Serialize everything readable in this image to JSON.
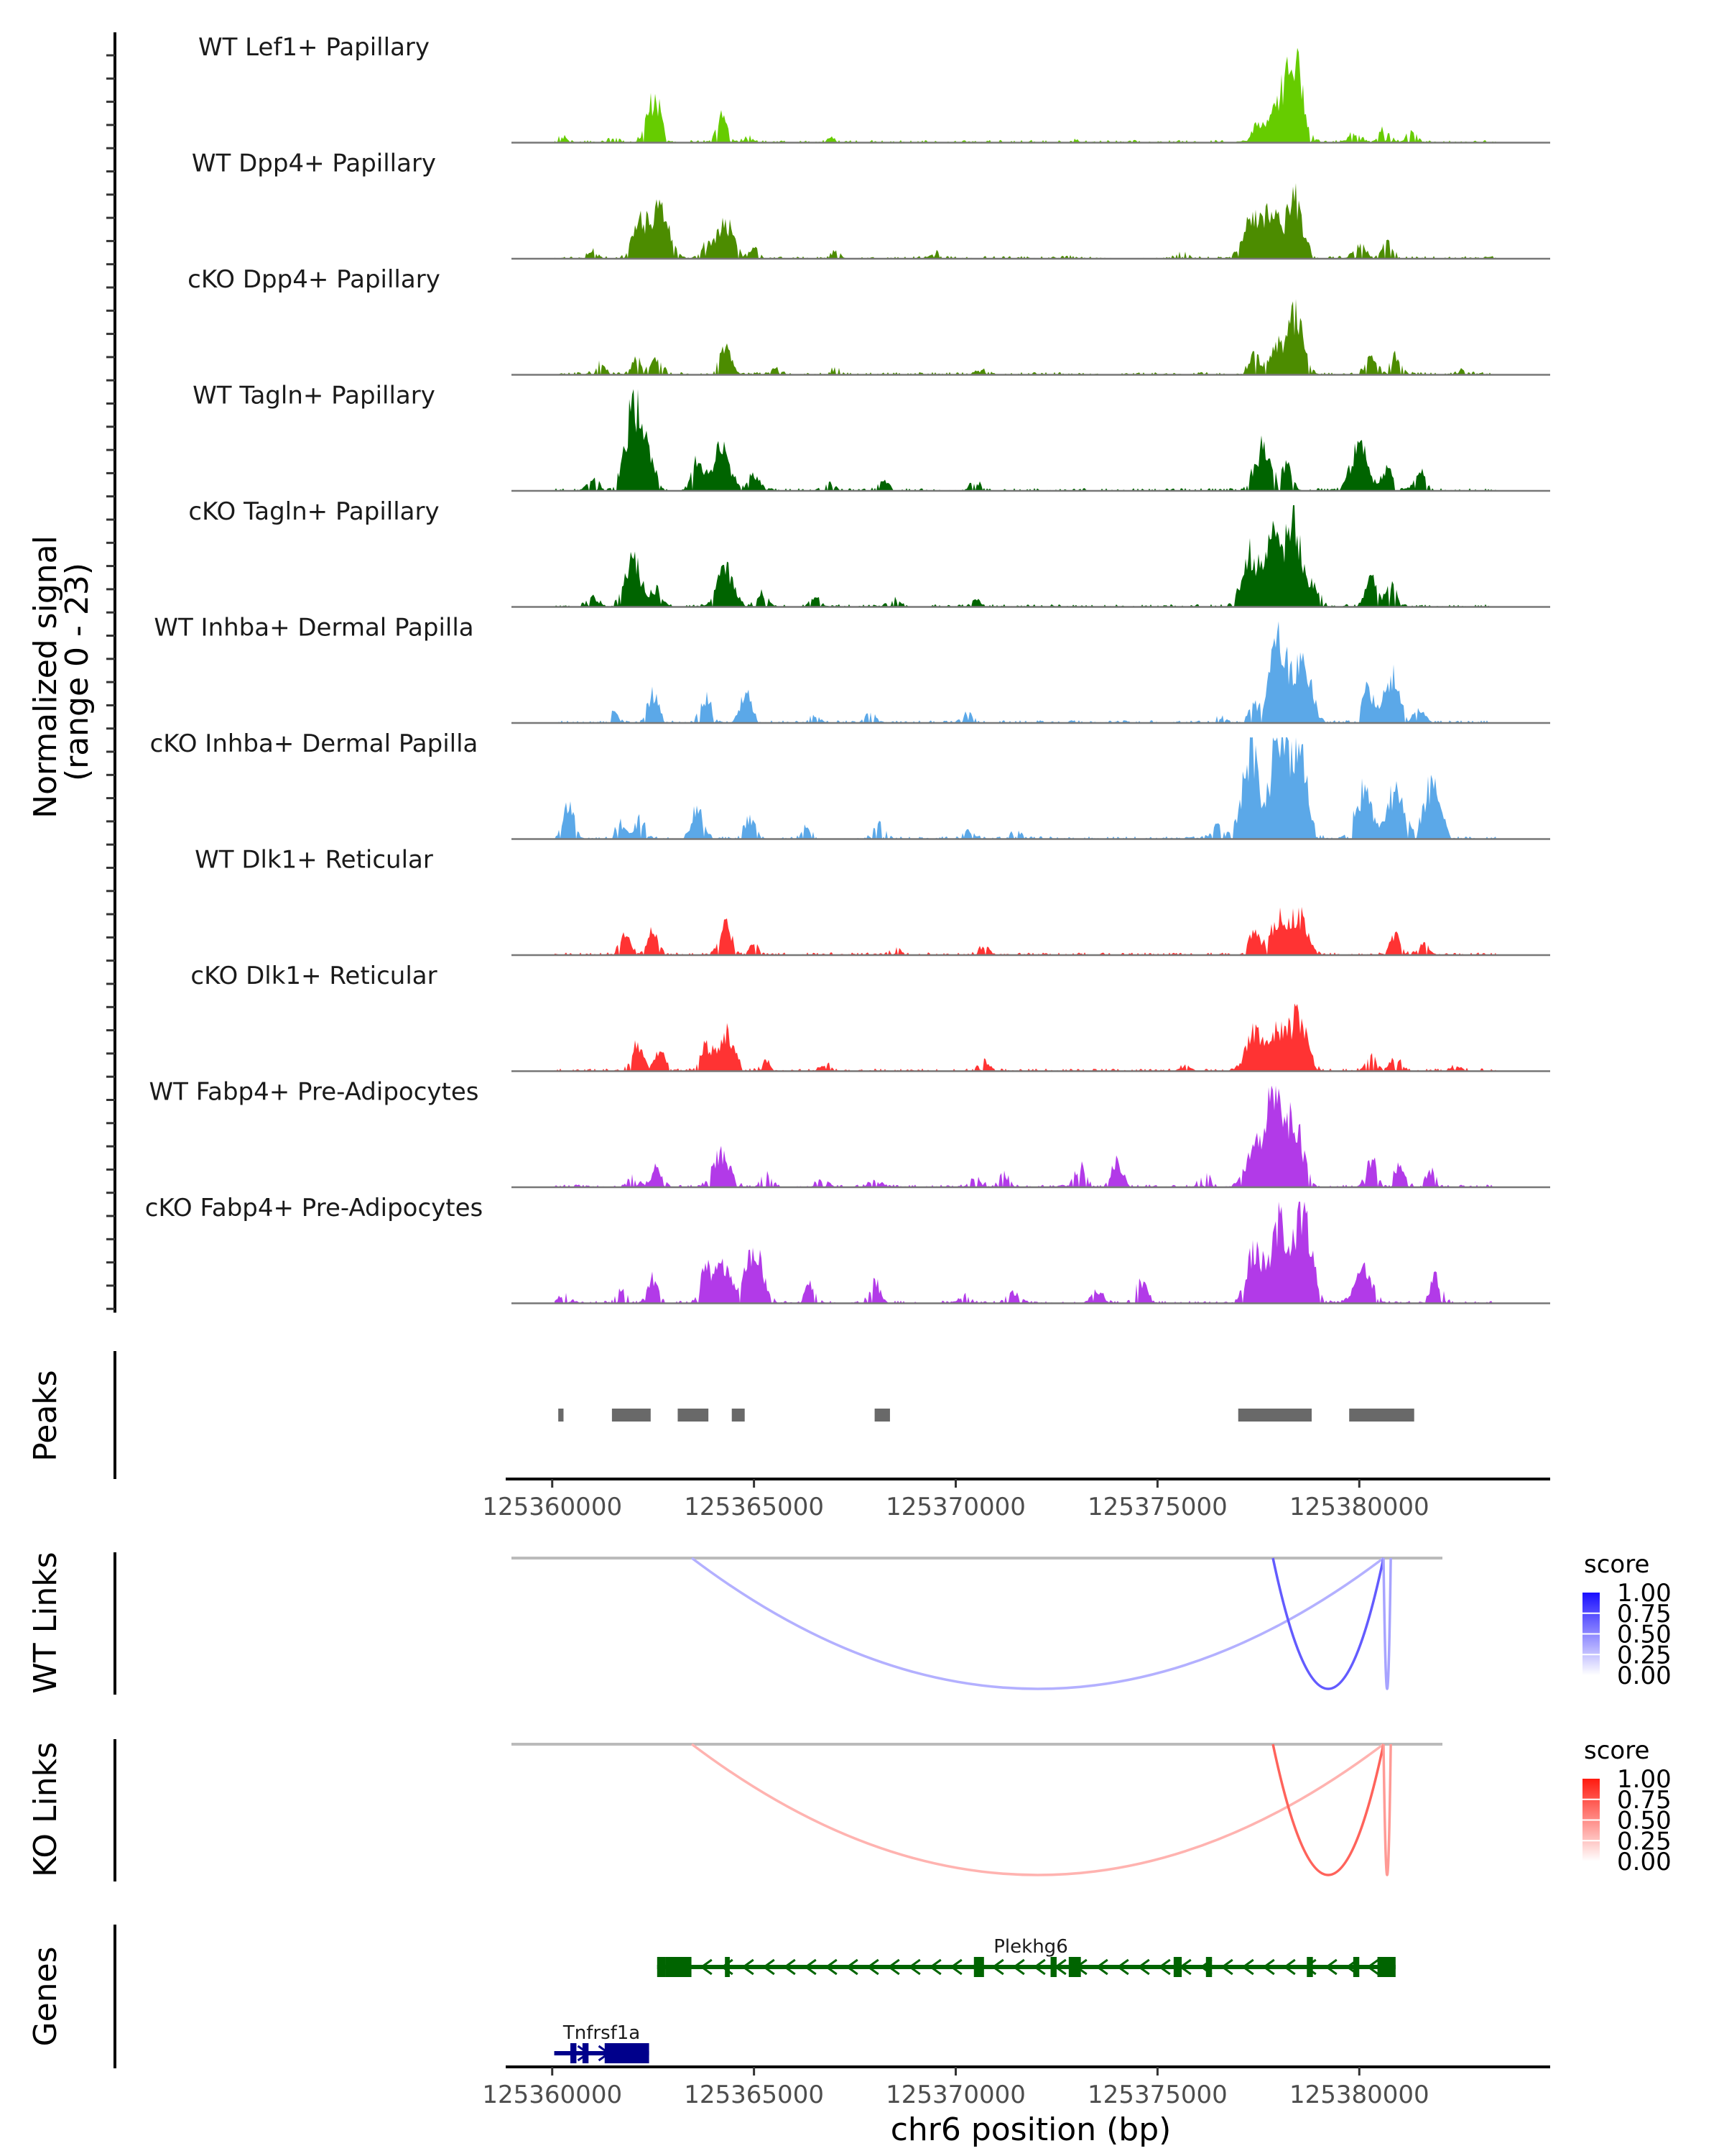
{
  "chart_data": {
    "type": "area",
    "title": "",
    "region": {
      "chrom": "chr6",
      "start": 125358990,
      "end": 125384730
    },
    "coverage_ylabel": [
      "Normalized signal",
      "(range 0 - 23)"
    ],
    "coverage_ylim": [
      0,
      23
    ],
    "xlabel": "chr6 position (bp)",
    "x_ticks": [
      125360000,
      125365000,
      125370000,
      125375000,
      125380000
    ],
    "x_tick_labels": [
      "125360000",
      "125365000",
      "125370000",
      "125375000",
      "125380000"
    ],
    "coverage_tracks": [
      {
        "name": "WT Lef1+ Papillary",
        "color": "#66cc00",
        "peaks": [
          [
            125360250,
            1.2
          ],
          [
            125361500,
            1.0
          ],
          [
            125362400,
            5.0
          ],
          [
            125362600,
            8.0
          ],
          [
            125364200,
            6.5
          ],
          [
            125364900,
            1.2
          ],
          [
            125366900,
            1.0
          ],
          [
            125373000,
            0.5
          ],
          [
            125377500,
            4.5
          ],
          [
            125378000,
            8.5
          ],
          [
            125378400,
            19.0
          ],
          [
            125379900,
            2.5
          ],
          [
            125380600,
            2.8
          ],
          [
            125381300,
            2.5
          ]
        ]
      },
      {
        "name": "WT Dpp4+ Papillary",
        "color": "#4c8c00",
        "peaks": [
          [
            125361000,
            2.0
          ],
          [
            125362200,
            9.0
          ],
          [
            125362700,
            12.0
          ],
          [
            125363800,
            3.0
          ],
          [
            125364300,
            8.5
          ],
          [
            125365000,
            2.0
          ],
          [
            125367000,
            1.5
          ],
          [
            125369500,
            1.5
          ],
          [
            125372800,
            1.0
          ],
          [
            125375600,
            1.5
          ],
          [
            125377300,
            9.0
          ],
          [
            125377800,
            11.0
          ],
          [
            125378400,
            14.0
          ],
          [
            125380000,
            3.5
          ],
          [
            125380700,
            4.0
          ]
        ]
      },
      {
        "name": "cKO Dpp4+ Papillary",
        "color": "#4c8c00",
        "peaks": [
          [
            125361200,
            2.5
          ],
          [
            125362100,
            4.0
          ],
          [
            125362600,
            4.0
          ],
          [
            125364300,
            7.5
          ],
          [
            125365500,
            1.5
          ],
          [
            125367000,
            1.5
          ],
          [
            125370700,
            1.5
          ],
          [
            125377400,
            5.0
          ],
          [
            125377900,
            7.0
          ],
          [
            125378400,
            14.0
          ],
          [
            125380300,
            4.5
          ],
          [
            125380900,
            4.5
          ],
          [
            125382500,
            1.0
          ]
        ]
      },
      {
        "name": "WT Tagln+ Papillary",
        "color": "#006400",
        "peaks": [
          [
            125361000,
            3.0
          ],
          [
            125362000,
            17.0
          ],
          [
            125362300,
            9.0
          ],
          [
            125363600,
            7.0
          ],
          [
            125364200,
            11.0
          ],
          [
            125365000,
            4.0
          ],
          [
            125366800,
            2.0
          ],
          [
            125368200,
            2.5
          ],
          [
            125370500,
            2.0
          ],
          [
            125377600,
            10.0
          ],
          [
            125378200,
            6.0
          ],
          [
            125380000,
            11.0
          ],
          [
            125380700,
            5.0
          ],
          [
            125381500,
            4.5
          ]
        ]
      },
      {
        "name": "cKO Tagln+ Papillary",
        "color": "#006400",
        "peaks": [
          [
            125361000,
            2.5
          ],
          [
            125362000,
            11.0
          ],
          [
            125362600,
            4.0
          ],
          [
            125364300,
            9.0
          ],
          [
            125365200,
            3.0
          ],
          [
            125366500,
            2.0
          ],
          [
            125368500,
            2.0
          ],
          [
            125370500,
            1.5
          ],
          [
            125377300,
            13.0
          ],
          [
            125377900,
            17.0
          ],
          [
            125378400,
            19.0
          ],
          [
            125378900,
            4.0
          ],
          [
            125380300,
            8.0
          ],
          [
            125380800,
            5.0
          ]
        ]
      },
      {
        "name": "WT Inhba+ Dermal Papilla",
        "color": "#5ba8e8",
        "peaks": [
          [
            125361500,
            2.5
          ],
          [
            125362500,
            7.0
          ],
          [
            125363800,
            6.5
          ],
          [
            125364800,
            7.5
          ],
          [
            125366500,
            2.0
          ],
          [
            125367900,
            2.5
          ],
          [
            125370300,
            2.5
          ],
          [
            125376600,
            1.5
          ],
          [
            125377400,
            4.0
          ],
          [
            125378000,
            22.0
          ],
          [
            125378600,
            15.0
          ],
          [
            125380200,
            8.0
          ],
          [
            125380800,
            11.5
          ],
          [
            125381500,
            3.0
          ]
        ]
      },
      {
        "name": "cKO Inhba+ Dermal Papilla",
        "color": "#5ba8e8",
        "peaks": [
          [
            125360400,
            8.0
          ],
          [
            125361700,
            3.5
          ],
          [
            125362200,
            5.0
          ],
          [
            125363600,
            7.5
          ],
          [
            125364900,
            5.0
          ],
          [
            125366300,
            3.0
          ],
          [
            125368100,
            3.5
          ],
          [
            125370300,
            2.0
          ],
          [
            125371500,
            2.0
          ],
          [
            125376500,
            3.5
          ],
          [
            125377300,
            21.0
          ],
          [
            125378000,
            26.0
          ],
          [
            125378500,
            24.0
          ],
          [
            125380100,
            11.5
          ],
          [
            125380900,
            12.0
          ],
          [
            125381800,
            13.0
          ]
        ]
      },
      {
        "name": "WT Dlk1+ Reticular",
        "color": "#ff3333",
        "peaks": [
          [
            125361800,
            4.5
          ],
          [
            125362500,
            5.5
          ],
          [
            125364300,
            8.0
          ],
          [
            125365000,
            2.5
          ],
          [
            125368500,
            2.0
          ],
          [
            125370700,
            2.0
          ],
          [
            125377400,
            5.5
          ],
          [
            125378000,
            8.5
          ],
          [
            125378500,
            9.5
          ],
          [
            125380900,
            4.5
          ],
          [
            125381600,
            2.5
          ]
        ]
      },
      {
        "name": "cKO Dlk1+ Reticular",
        "color": "#ff3333",
        "peaks": [
          [
            125362100,
            6.5
          ],
          [
            125362700,
            5.0
          ],
          [
            125363800,
            5.5
          ],
          [
            125364300,
            9.0
          ],
          [
            125365300,
            2.0
          ],
          [
            125366800,
            1.5
          ],
          [
            125370700,
            2.0
          ],
          [
            125375700,
            1.5
          ],
          [
            125377400,
            9.0
          ],
          [
            125378000,
            9.5
          ],
          [
            125378500,
            13.0
          ],
          [
            125380300,
            3.5
          ],
          [
            125380900,
            3.0
          ],
          [
            125382400,
            1.2
          ]
        ]
      },
      {
        "name": "WT Fabp4+ Pre-Adipocytes",
        "color": "#b23ae8",
        "peaks": [
          [
            125362000,
            3.0
          ],
          [
            125362600,
            4.5
          ],
          [
            125364200,
            8.5
          ],
          [
            125365300,
            3.5
          ],
          [
            125366700,
            2.0
          ],
          [
            125368000,
            1.5
          ],
          [
            125370500,
            2.5
          ],
          [
            125371200,
            3.0
          ],
          [
            125373100,
            5.0
          ],
          [
            125374000,
            6.0
          ],
          [
            125376200,
            3.5
          ],
          [
            125377400,
            10.0
          ],
          [
            125377900,
            22.0
          ],
          [
            125378400,
            15.0
          ],
          [
            125380300,
            6.5
          ],
          [
            125381000,
            5.5
          ],
          [
            125381800,
            4.0
          ]
        ]
      },
      {
        "name": "cKO Fabp4+ Pre-Adipocytes",
        "color": "#b23ae8",
        "peaks": [
          [
            125360300,
            2.5
          ],
          [
            125361700,
            3.5
          ],
          [
            125362500,
            6.0
          ],
          [
            125363800,
            7.5
          ],
          [
            125364200,
            9.5
          ],
          [
            125365000,
            14.0
          ],
          [
            125366400,
            5.0
          ],
          [
            125368000,
            5.0
          ],
          [
            125370200,
            2.0
          ],
          [
            125371400,
            3.0
          ],
          [
            125373500,
            3.0
          ],
          [
            125374600,
            5.0
          ],
          [
            125377400,
            12.0
          ],
          [
            125378000,
            19.5
          ],
          [
            125378600,
            25.0
          ],
          [
            125380100,
            8.5
          ],
          [
            125381900,
            6.5
          ]
        ]
      }
    ],
    "peaks_track": {
      "label": "Peaks",
      "color": "#696969",
      "regions": [
        [
          125360150,
          125360280
        ],
        [
          125361480,
          125362440
        ],
        [
          125363110,
          125363870
        ],
        [
          125364450,
          125364770
        ],
        [
          125367990,
          125368370
        ],
        [
          125377000,
          125378820
        ],
        [
          125379750,
          125381360
        ]
      ]
    },
    "links_tracks": [
      {
        "label": "WT Links",
        "legend_title": "score",
        "low_color": "#ffffff",
        "high_color": "#1a0fff",
        "legend_ticks": [
          "1.00",
          "0.75",
          "0.50",
          "0.25",
          "0.00"
        ],
        "links": [
          {
            "start": 125363460,
            "end": 125380600,
            "score": 0.3
          },
          {
            "start": 125377860,
            "end": 125380600,
            "score": 0.62
          },
          {
            "start": 125380600,
            "end": 125380780,
            "score": 0.35
          }
        ]
      },
      {
        "label": "KO Links",
        "legend_title": "score",
        "low_color": "#ffffff",
        "high_color": "#ff1a0f",
        "legend_ticks": [
          "1.00",
          "0.75",
          "0.50",
          "0.25",
          "0.00"
        ],
        "links": [
          {
            "start": 125363460,
            "end": 125380600,
            "score": 0.3
          },
          {
            "start": 125377860,
            "end": 125380600,
            "score": 0.62
          },
          {
            "start": 125380600,
            "end": 125380780,
            "score": 0.4
          }
        ]
      }
    ],
    "genes_track": {
      "label": "Genes",
      "genes": [
        {
          "name": "Plekhg6",
          "strand": "-",
          "color": "#006400",
          "start": 125362600,
          "end": 125380900,
          "row": 0,
          "exons": [
            [
              125362600,
              125362800
            ],
            [
              125362800,
              125363450
            ],
            [
              125364280,
              125364400
            ],
            [
              125370450,
              125370700
            ],
            [
              125372350,
              125372500
            ],
            [
              125372800,
              125373100
            ],
            [
              125375400,
              125375600
            ],
            [
              125376200,
              125376350
            ],
            [
              125378700,
              125378850
            ],
            [
              125379850,
              125380000
            ],
            [
              125380450,
              125380900
            ]
          ]
        },
        {
          "name": "Tnfrsf1a",
          "strand": "+",
          "color": "#00008b",
          "start": 125360050,
          "end": 125362400,
          "row": 1,
          "exons": [
            [
              125360450,
              125360600
            ],
            [
              125360750,
              125360900
            ],
            [
              125361300,
              125362400
            ]
          ]
        }
      ]
    }
  }
}
